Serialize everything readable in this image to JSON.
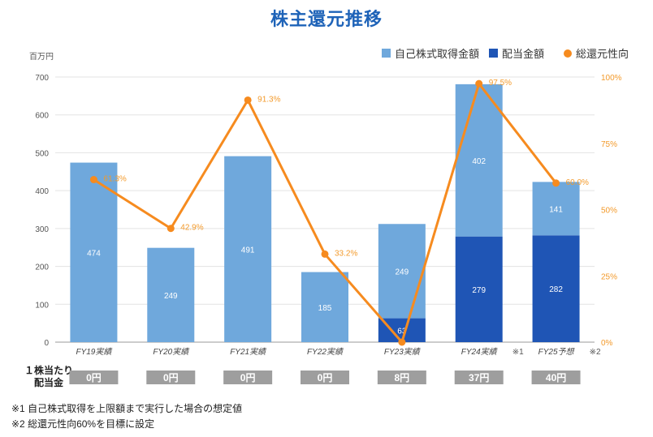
{
  "title": "株主還元推移",
  "unit_label": "百万円",
  "legend": [
    {
      "label": "自己株式取得金額",
      "color": "#6fa8dc"
    },
    {
      "label": "配当金額",
      "color": "#1f55b5"
    },
    {
      "label": "総還元性向",
      "color": "#f68b1f"
    }
  ],
  "chart_data": {
    "type": "bar",
    "stacked": true,
    "categories": [
      "FY19実績",
      "FY20実績",
      "FY21実績",
      "FY22実績",
      "FY23実績",
      "FY24実績",
      "FY25予想"
    ],
    "category_notes": [
      "",
      "",
      "",
      "",
      "",
      "※1",
      "※2"
    ],
    "series": [
      {
        "name": "配当金額",
        "color": "#1f55b5",
        "values": [
          0,
          0,
          0,
          0,
          63,
          279,
          282
        ],
        "labels": [
          "",
          "",
          "",
          "",
          "63",
          "279",
          "282"
        ]
      },
      {
        "name": "自己株式取得金額",
        "color": "#6fa8dc",
        "values": [
          474,
          249,
          491,
          185,
          249,
          402,
          141
        ],
        "labels": [
          "474",
          "249",
          "491",
          "185",
          "249",
          "402",
          "141"
        ]
      }
    ],
    "line": {
      "name": "総還元性向",
      "color": "#f68b1f",
      "values": [
        61.3,
        42.9,
        91.3,
        33.2,
        0,
        97.5,
        60.0
      ],
      "labels": [
        "61.3%",
        "42.9%",
        "91.3%",
        "33.2%",
        "",
        "97.5%",
        "60.0%"
      ]
    },
    "ylim": [
      0,
      700
    ],
    "yticks": [
      "0",
      "100",
      "200",
      "300",
      "400",
      "500",
      "600",
      "700"
    ],
    "y2lim": [
      0,
      100
    ],
    "y2ticks": [
      "0%",
      "25%",
      "50%",
      "75%",
      "100%"
    ],
    "grid": true,
    "legend_position": "top-right"
  },
  "dps": {
    "header_line1": "１株当たり",
    "header_line2": "配当金",
    "values": [
      "0円",
      "0円",
      "0円",
      "0円",
      "8円",
      "37円",
      "40円"
    ]
  },
  "notes": [
    "※1 自己株式取得を上限額まで実行した場合の想定値",
    "※2 総還元性向60%を目標に設定"
  ]
}
